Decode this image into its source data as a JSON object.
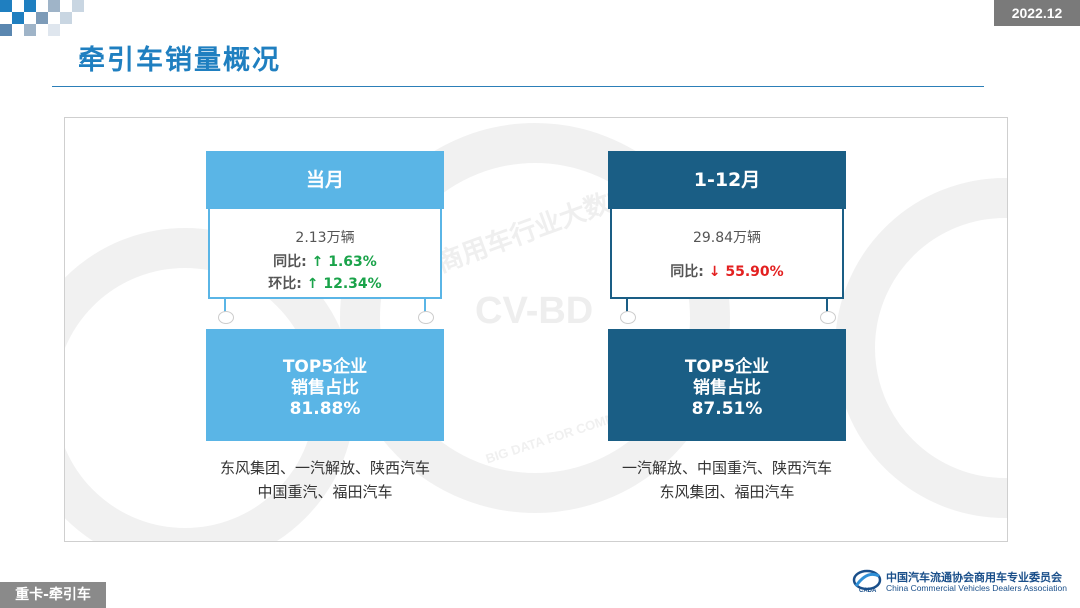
{
  "header": {
    "date": "2022.12",
    "title": "牵引车销量概况"
  },
  "colors": {
    "accent_light": "#5ab5e6",
    "accent_dark": "#1a5e85",
    "up": "#1aa34a",
    "down": "#e32020"
  },
  "monthly": {
    "label": "当月",
    "volume": "2.13万辆",
    "yoy_label": "同比:",
    "yoy_value": "↑  1.63%",
    "mom_label": "环比:",
    "mom_value": "↑ 12.34%",
    "top5_line1": "TOP5企业",
    "top5_line2": "销售占比",
    "top5_value": "81.88%",
    "companies_line1": "东风集团、一汽解放、陕西汽车",
    "companies_line2": "中国重汽、福田汽车"
  },
  "ytd": {
    "label": "1-12月",
    "volume": "29.84万辆",
    "yoy_label": "同比:",
    "yoy_value": "↓ 55.90%",
    "top5_line1": "TOP5企业",
    "top5_line2": "销售占比",
    "top5_value": "87.51%",
    "companies_line1": "一汽解放、中国重汽、陕西汽车",
    "companies_line2": "东风集团、福田汽车"
  },
  "footer": {
    "tag": "重卡-牵引车",
    "assoc_cn": "中国汽车流通协会商用车专业委员会",
    "assoc_en": "China Commercial Vehicles Dealers Association"
  },
  "watermark": {
    "text_cn": "商用车行业大数据平台",
    "text_en": "CV-BD",
    "text_ring": "BIG DATA FOR COMMERCIAL"
  }
}
